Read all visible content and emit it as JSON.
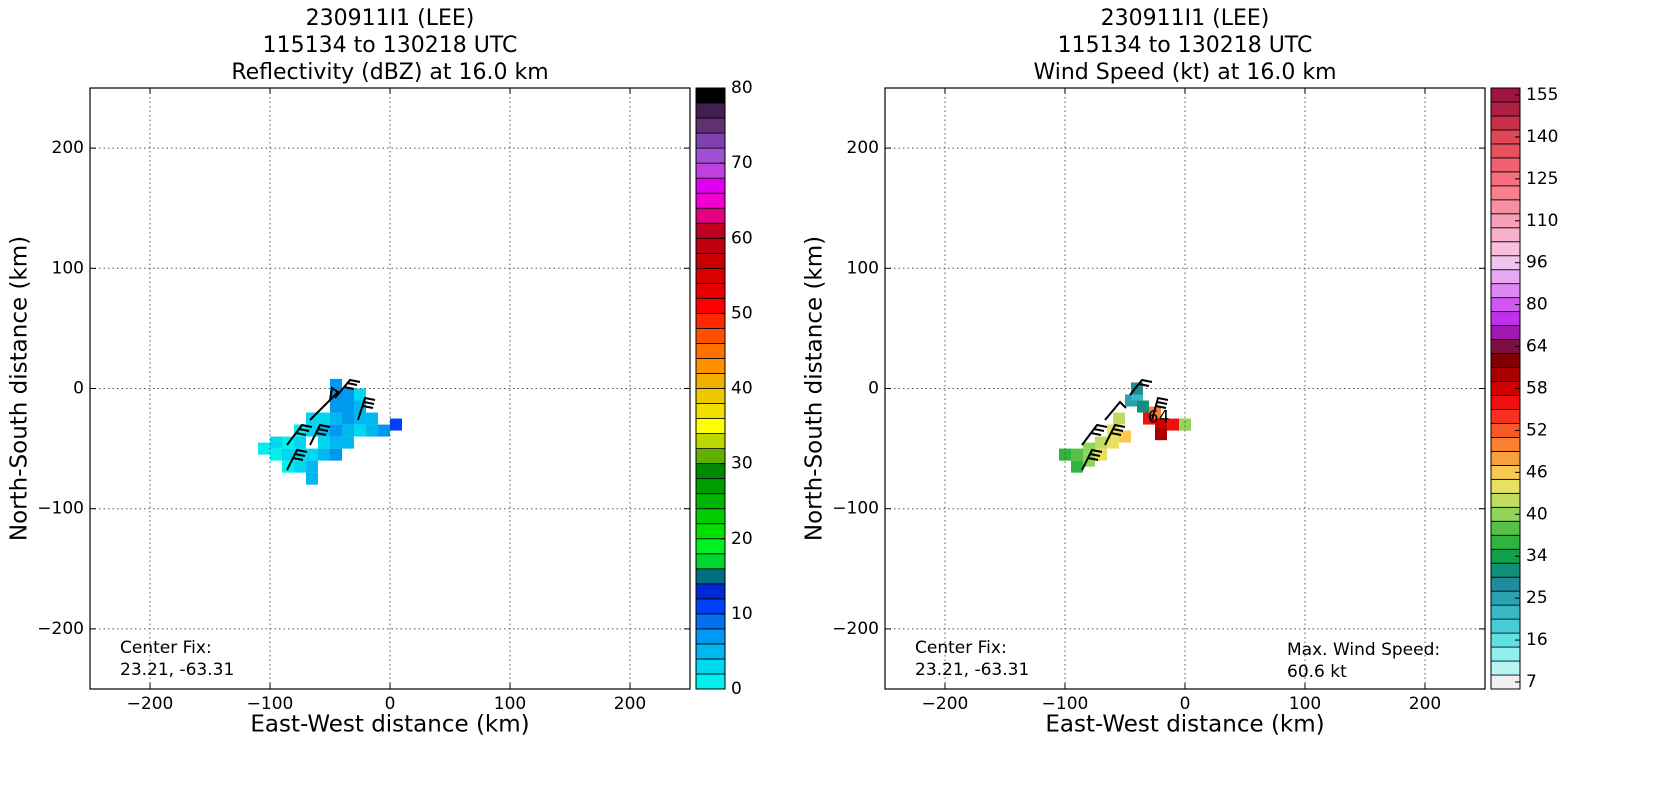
{
  "chart_data": [
    {
      "type": "heatmap",
      "title": [
        "230911I1 (LEE)",
        "115134 to 130218 UTC",
        "Reflectivity (dBZ) at 16.0 km"
      ],
      "xlabel": "East-West distance (km)",
      "ylabel": "North-South distance (km)",
      "xlim": [
        -250,
        250
      ],
      "ylim": [
        -250,
        250
      ],
      "xticks": [
        {
          "value": -200,
          "label": "−200"
        },
        {
          "value": -100,
          "label": "−100"
        },
        0,
        100,
        200
      ],
      "yticks": [
        {
          "value": -200,
          "label": "−200"
        },
        {
          "value": -100,
          "label": "−100"
        },
        0,
        100,
        200
      ],
      "grid": true,
      "annotations": [
        "Center Fix:",
        "23.21, -63.31"
      ],
      "colorbar_lim": [
        0,
        80
      ],
      "colorbar_ticks": [
        0,
        10,
        20,
        30,
        40,
        50,
        60,
        70,
        80
      ],
      "colorbar_colors": [
        "#00f0f0",
        "#00d8f0",
        "#00b8f0",
        "#0098f0",
        "#0070f0",
        "#0040f8",
        "#0028d8",
        "#007080",
        "#00d830",
        "#00f020",
        "#00e000",
        "#00cc00",
        "#00b400",
        "#009c00",
        "#008800",
        "#60b000",
        "#b8d800",
        "#ffff00",
        "#f0e000",
        "#f0c800",
        "#f0b000",
        "#ff9000",
        "#ff7000",
        "#ff5000",
        "#ff2800",
        "#ff0000",
        "#e80000",
        "#d80000",
        "#c80000",
        "#c00010",
        "#c00020",
        "#e00080",
        "#f000d0",
        "#e000f0",
        "#c040e0",
        "#a050d0",
        "#8040b0",
        "#603070",
        "#402050",
        "#000000"
      ],
      "x": [
        -95,
        -85,
        -75,
        -95,
        -85,
        -75,
        -65,
        -85,
        -75,
        -65,
        -55,
        -55,
        -45,
        -35,
        -25,
        -15,
        -5,
        5,
        -45,
        -35,
        -25,
        -15,
        -45,
        -35,
        -25,
        -45,
        -35,
        -45,
        -65,
        -75,
        -55,
        -65,
        -55,
        -45,
        -35,
        -45,
        -65,
        -105,
        -25
      ],
      "y": [
        -45,
        -45,
        -45,
        -55,
        -55,
        -55,
        -55,
        -65,
        -65,
        -65,
        -45,
        -35,
        -35,
        -35,
        -35,
        -35,
        -35,
        -30,
        -25,
        -25,
        -25,
        -25,
        -15,
        -15,
        -15,
        -5,
        -5,
        3,
        -35,
        -35,
        -25,
        -25,
        -55,
        -55,
        -45,
        -45,
        -75,
        -50,
        -5
      ],
      "values": [
        2,
        1,
        2,
        1,
        2,
        3,
        2,
        1,
        2,
        4,
        3,
        4,
        6,
        4,
        3,
        4,
        7,
        11,
        5,
        6,
        5,
        4,
        7,
        6,
        5,
        6,
        7,
        6,
        2,
        1,
        3,
        2,
        5,
        6,
        5,
        4,
        4,
        1,
        3
      ]
    },
    {
      "type": "heatmap",
      "title": [
        "230911I1 (LEE)",
        "115134 to 130218 UTC",
        "Wind Speed (kt) at 16.0 km"
      ],
      "xlabel": "East-West distance (km)",
      "ylabel": "North-South distance (km)",
      "xlim": [
        -250,
        250
      ],
      "ylim": [
        -250,
        250
      ],
      "xticks": [
        {
          "value": -200,
          "label": "−200"
        },
        {
          "value": -100,
          "label": "−100"
        },
        0,
        100,
        200
      ],
      "yticks": [
        {
          "value": -200,
          "label": "−200"
        },
        {
          "value": -100,
          "label": "−100"
        },
        0,
        100,
        200
      ],
      "grid": true,
      "annotations": [
        "Center Fix:",
        "23.21, -63.31"
      ],
      "max_annotations": [
        "Max. Wind Speed:",
        "60.6 kt"
      ],
      "contour_label": "64",
      "colorbar_ticks": [
        7,
        16,
        25,
        34,
        40,
        46,
        52,
        58,
        64,
        80,
        96,
        110,
        125,
        140,
        155
      ],
      "colorbar_colors": [
        "#f0f0f0",
        "#b8f4f4",
        "#90f0f0",
        "#60e0e0",
        "#48ccd4",
        "#38b8c4",
        "#2aa0b0",
        "#1e8c9c",
        "#10907a",
        "#10a048",
        "#30b440",
        "#58c048",
        "#90d458",
        "#c0dc60",
        "#e8e060",
        "#f8c850",
        "#f8a040",
        "#f88030",
        "#f85828",
        "#f83020",
        "#f01010",
        "#d00000",
        "#a80000",
        "#800000",
        "#7a1040",
        "#a018b0",
        "#c030e8",
        "#d058f0",
        "#dc88f0",
        "#e8a8f0",
        "#f0c4ec",
        "#f8c0dc",
        "#f8b0cc",
        "#f8a0b8",
        "#f890a4",
        "#f88090",
        "#f87080",
        "#f06070",
        "#e85060",
        "#e04858",
        "#c83048",
        "#b02044",
        "#a01440"
      ],
      "x": [
        -100,
        -90,
        -90,
        -80,
        -80,
        -70,
        -70,
        -60,
        -60,
        -50,
        -55,
        -45,
        -40,
        -40,
        -35,
        -30,
        -20,
        -10,
        -20,
        0,
        -25
      ],
      "y": [
        -55,
        -55,
        -65,
        -60,
        -50,
        -45,
        -55,
        -45,
        -35,
        -40,
        -25,
        -10,
        -5,
        0,
        -15,
        -25,
        -30,
        -30,
        -38,
        -30,
        -20
      ],
      "values": [
        36,
        38,
        35,
        39,
        40,
        41,
        43,
        44,
        43,
        46,
        42,
        25,
        22,
        28,
        30,
        55,
        58,
        56,
        60,
        40,
        50
      ]
    }
  ]
}
